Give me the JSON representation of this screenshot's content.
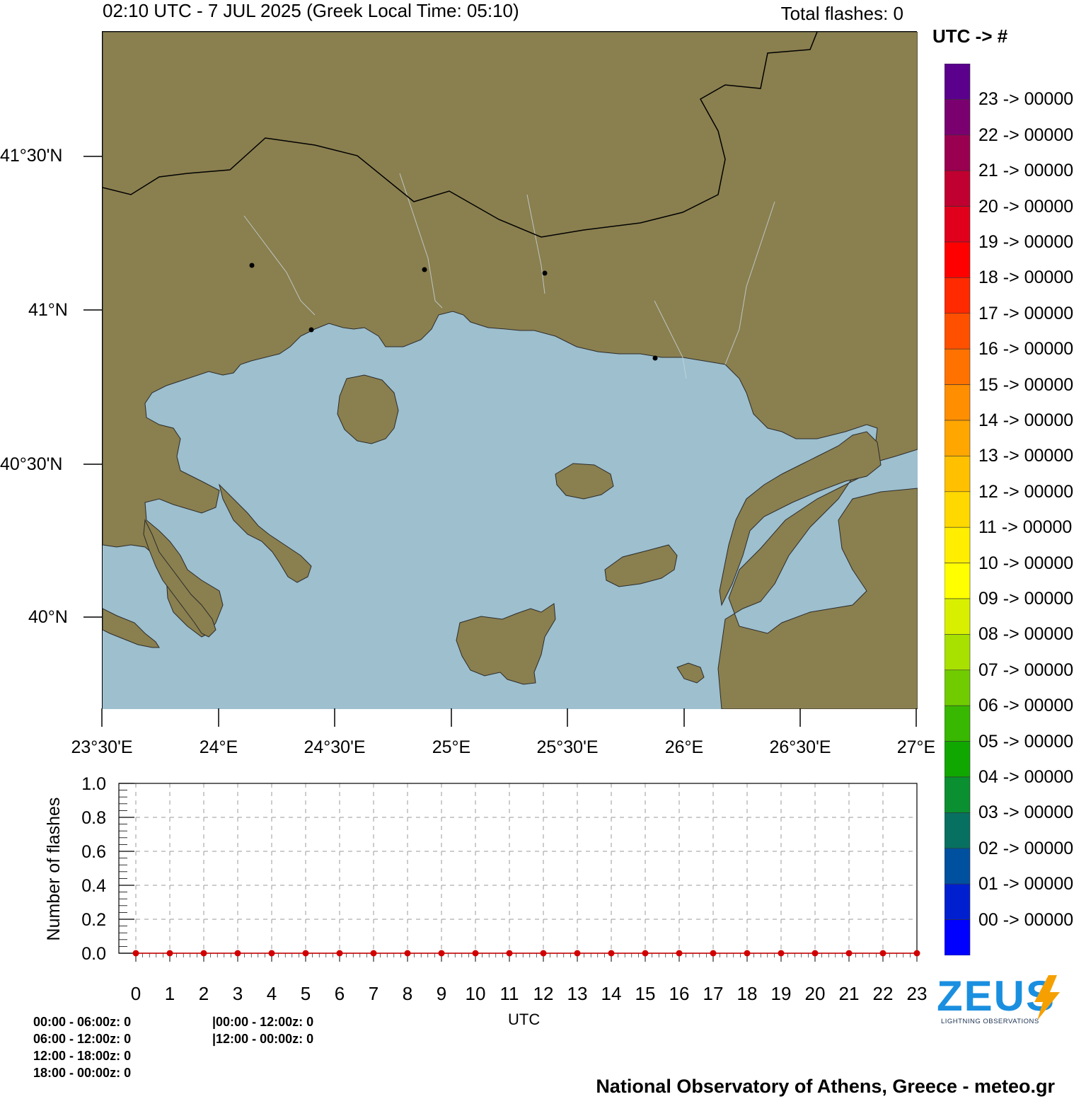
{
  "header": {
    "title": "02:10 UTC -  7  JUL 2025 (Greek Local Time: 05:10)",
    "total_flashes": "Total flashes: 0"
  },
  "map": {
    "lat_labels": [
      "41°30'N",
      "41°N",
      "40°30'N",
      "40°N"
    ],
    "lon_labels": [
      "23°30'E",
      "24°E",
      "24°30'E",
      "25°E",
      "25°30'E",
      "26°E",
      "26°30'E",
      "27°E"
    ],
    "colors": {
      "land": "#8a7f4f",
      "sea": "#9dbfce",
      "border": "#000000",
      "river": "#c8d8e0"
    }
  },
  "legend": {
    "header": "UTC   ->    #",
    "entries": [
      {
        "label": "23 -> 00000",
        "color": "#5a008c"
      },
      {
        "label": "22 -> 00000",
        "color": "#7a0070"
      },
      {
        "label": "21 -> 00000",
        "color": "#9a0050"
      },
      {
        "label": "20 -> 00000",
        "color": "#c00030"
      },
      {
        "label": "19 -> 00000",
        "color": "#e0001c"
      },
      {
        "label": "18 -> 00000",
        "color": "#ff0000"
      },
      {
        "label": "17 -> 00000",
        "color": "#ff2a00"
      },
      {
        "label": "16 -> 00000",
        "color": "#ff5000"
      },
      {
        "label": "15 -> 00000",
        "color": "#ff7200"
      },
      {
        "label": "14 -> 00000",
        "color": "#ff8e00"
      },
      {
        "label": "13 -> 00000",
        "color": "#ffa600"
      },
      {
        "label": "12 -> 00000",
        "color": "#ffc000"
      },
      {
        "label": "11 -> 00000",
        "color": "#ffd800"
      },
      {
        "label": "10 -> 00000",
        "color": "#ffee00"
      },
      {
        "label": "09 -> 00000",
        "color": "#ffff00"
      },
      {
        "label": "08 -> 00000",
        "color": "#d8f000"
      },
      {
        "label": "07 -> 00000",
        "color": "#a8e000"
      },
      {
        "label": "06 -> 00000",
        "color": "#70cc00"
      },
      {
        "label": "05 -> 00000",
        "color": "#38b800"
      },
      {
        "label": "04 -> 00000",
        "color": "#10a800"
      },
      {
        "label": "03 -> 00000",
        "color": "#0a9030"
      },
      {
        "label": "02 -> 00000",
        "color": "#087060"
      },
      {
        "label": "01 -> 00000",
        "color": "#0050a0"
      },
      {
        "label": "00 -> 00000",
        "color": "#0020d0"
      }
    ],
    "bottom_color": "#0000ff"
  },
  "chart_data": {
    "type": "line",
    "ylabel": "Number of flashes",
    "xlabel": "UTC",
    "x": [
      0,
      1,
      2,
      3,
      4,
      5,
      6,
      7,
      8,
      9,
      10,
      11,
      12,
      13,
      14,
      15,
      16,
      17,
      18,
      19,
      20,
      21,
      22,
      23
    ],
    "y": [
      0,
      0,
      0,
      0,
      0,
      0,
      0,
      0,
      0,
      0,
      0,
      0,
      0,
      0,
      0,
      0,
      0,
      0,
      0,
      0,
      0,
      0,
      0,
      0
    ],
    "ylim": [
      0,
      1.0
    ],
    "yticks": [
      "0.0",
      "0.2",
      "0.4",
      "0.6",
      "0.8",
      "1.0"
    ],
    "grid": true,
    "color": "#d00000"
  },
  "stats": {
    "left": [
      "00:00 - 06:00z: 0",
      "06:00 - 12:00z: 0",
      "12:00 - 18:00z: 0",
      "18:00 - 00:00z: 0"
    ],
    "right": [
      "|00:00 - 12:00z: 0",
      "|12:00 - 00:00z: 0"
    ]
  },
  "logo": {
    "text": "ZEUS",
    "subtitle": "LIGHTNING OBSERVATIONS",
    "color": "#1a8fe0",
    "bolt_color": "#f5a000"
  },
  "footer": "National Observatory of Athens, Greece - meteo.gr"
}
